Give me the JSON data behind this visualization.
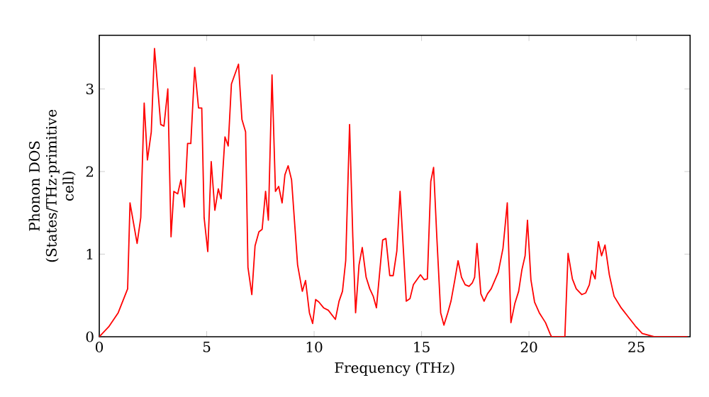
{
  "chart_data": {
    "type": "line",
    "xlabel": "Frequency (THz)",
    "ylabel": "Phonon DOS (States/THz·primitive cell)",
    "xlim": [
      0,
      27.5
    ],
    "ylim": [
      0,
      3.65
    ],
    "xticks": [
      0,
      5,
      10,
      15,
      20,
      25
    ],
    "yticks": [
      0,
      1,
      2,
      3
    ],
    "series": [
      {
        "color": "#ff0000",
        "x": [
          0,
          0.44,
          0.88,
          1.32,
          1.43,
          1.76,
          1.93,
          2.09,
          2.24,
          2.42,
          2.57,
          2.86,
          3.01,
          3.19,
          3.34,
          3.47,
          3.65,
          3.8,
          3.96,
          4.11,
          4.26,
          4.44,
          4.62,
          4.77,
          4.88,
          5.05,
          5.21,
          5.38,
          5.54,
          5.67,
          5.85,
          6.0,
          6.15,
          6.48,
          6.64,
          6.81,
          6.92,
          7.1,
          7.25,
          7.43,
          7.58,
          7.74,
          7.87,
          8.04,
          8.2,
          8.35,
          8.51,
          8.64,
          8.79,
          8.95,
          9.23,
          9.45,
          9.6,
          9.78,
          9.93,
          10.07,
          10.22,
          10.44,
          10.66,
          10.99,
          11.16,
          11.32,
          11.47,
          11.65,
          11.8,
          11.93,
          12.09,
          12.24,
          12.42,
          12.59,
          12.75,
          12.9,
          13.19,
          13.34,
          13.52,
          13.68,
          13.85,
          14.0,
          14.29,
          14.46,
          14.62,
          14.95,
          15.12,
          15.27,
          15.43,
          15.56,
          15.71,
          15.89,
          16.04,
          16.22,
          16.37,
          16.55,
          16.7,
          16.86,
          17.03,
          17.21,
          17.36,
          17.47,
          17.58,
          17.76,
          17.91,
          18.07,
          18.24,
          18.57,
          18.79,
          18.99,
          19.16,
          19.34,
          19.52,
          19.67,
          19.82,
          19.93,
          20.09,
          20.26,
          20.48,
          20.77,
          20.99,
          21.05,
          21.67,
          21.82,
          22.02,
          22.2,
          22.46,
          22.64,
          22.81,
          22.92,
          23.08,
          23.23,
          23.38,
          23.54,
          23.74,
          23.96,
          24.29,
          24.62,
          24.95,
          25.27,
          25.82,
          27.38
        ],
        "values": [
          0,
          0.12,
          0.29,
          0.58,
          1.62,
          1.13,
          1.44,
          2.83,
          2.14,
          2.48,
          3.49,
          2.57,
          2.55,
          3.0,
          1.21,
          1.76,
          1.73,
          1.9,
          1.57,
          2.34,
          2.34,
          3.26,
          2.77,
          2.77,
          1.44,
          1.03,
          2.12,
          1.53,
          1.79,
          1.67,
          2.42,
          2.31,
          3.06,
          3.3,
          2.63,
          2.48,
          0.84,
          0.51,
          1.1,
          1.27,
          1.3,
          1.76,
          1.41,
          3.17,
          1.76,
          1.82,
          1.62,
          1.96,
          2.07,
          1.9,
          0.87,
          0.55,
          0.68,
          0.29,
          0.16,
          0.45,
          0.42,
          0.35,
          0.32,
          0.21,
          0.43,
          0.55,
          0.92,
          2.57,
          1.21,
          0.29,
          0.87,
          1.08,
          0.72,
          0.58,
          0.49,
          0.35,
          1.17,
          1.19,
          0.74,
          0.74,
          1.04,
          1.76,
          0.43,
          0.46,
          0.63,
          0.75,
          0.69,
          0.7,
          1.88,
          2.05,
          1.21,
          0.29,
          0.14,
          0.29,
          0.43,
          0.69,
          0.92,
          0.72,
          0.63,
          0.61,
          0.65,
          0.72,
          1.13,
          0.52,
          0.43,
          0.52,
          0.58,
          0.78,
          1.07,
          1.62,
          0.17,
          0.4,
          0.55,
          0.81,
          0.98,
          1.41,
          0.69,
          0.42,
          0.29,
          0.17,
          0.03,
          0,
          0,
          1.01,
          0.7,
          0.58,
          0.51,
          0.53,
          0.63,
          0.8,
          0.7,
          1.15,
          0.98,
          1.11,
          0.75,
          0.49,
          0.35,
          0.24,
          0.13,
          0.04,
          0,
          0
        ]
      }
    ]
  }
}
